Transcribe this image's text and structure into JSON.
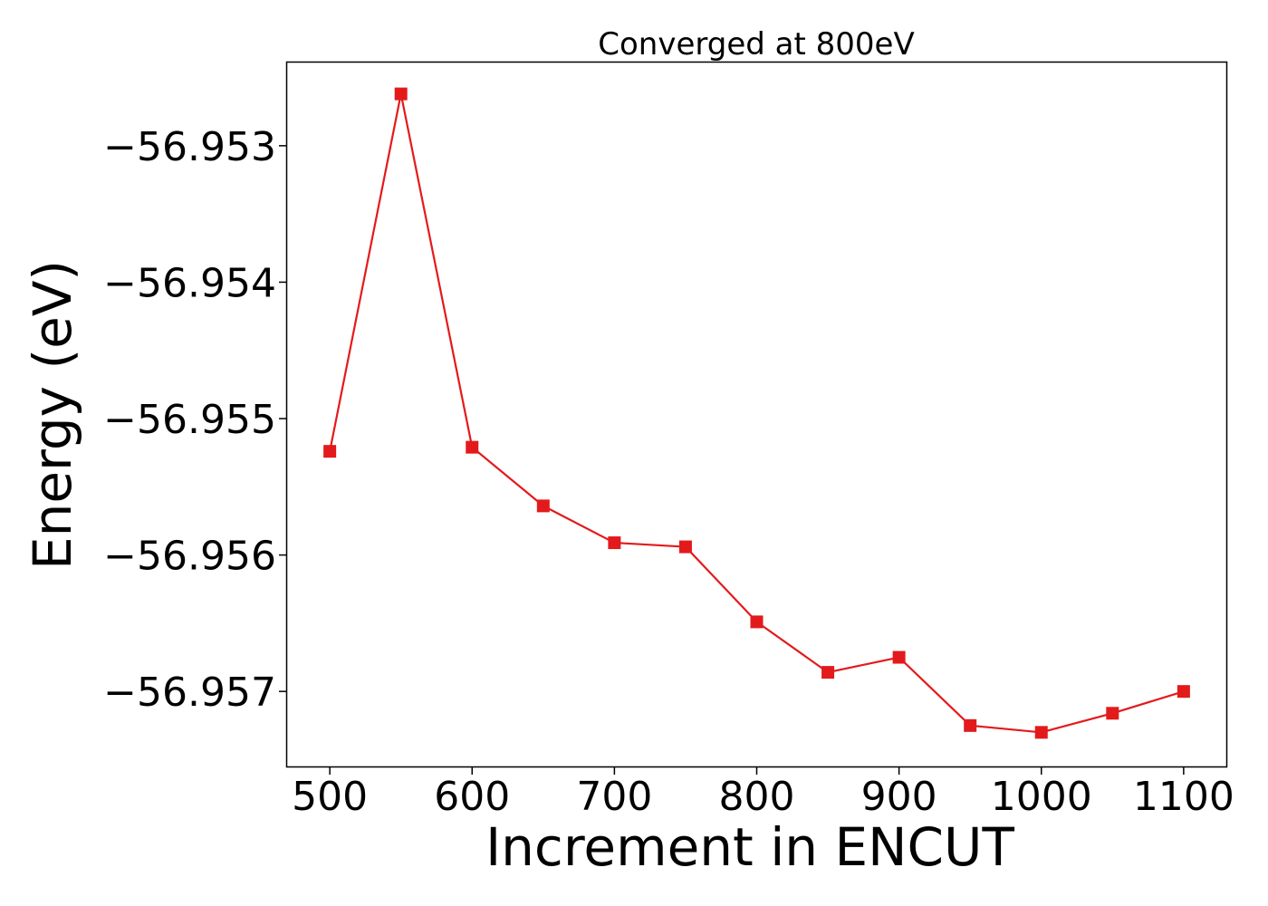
{
  "chart_data": {
    "type": "line",
    "title": "Converged at 800eV",
    "xlabel": "Increment in ENCUT",
    "ylabel": "Energy (eV)",
    "x": [
      500,
      550,
      600,
      650,
      700,
      750,
      800,
      850,
      900,
      950,
      1000,
      1050,
      1100
    ],
    "series": [
      {
        "values": [
          -56.95524,
          -56.95262,
          -56.95521,
          -56.95564,
          -56.95591,
          -56.95594,
          -56.95649,
          -56.95686,
          -56.95675,
          -56.95725,
          -56.9573,
          -56.95716,
          -56.957
        ],
        "color": "#e31a1c",
        "marker": "square"
      }
    ],
    "xlim": [
      470,
      1130
    ],
    "ylim": [
      -56.95755,
      -56.95239
    ],
    "xticks": [
      500,
      600,
      700,
      800,
      900,
      1000,
      1100
    ],
    "xtick_labels": [
      "500",
      "600",
      "700",
      "800",
      "900",
      "1000",
      "1100"
    ],
    "yticks": [
      -56.953,
      -56.954,
      -56.955,
      -56.956,
      -56.957
    ],
    "ytick_labels": [
      "−56.953",
      "−56.954",
      "−56.955",
      "−56.956",
      "−56.957"
    ],
    "grid": false,
    "legend": false
  }
}
